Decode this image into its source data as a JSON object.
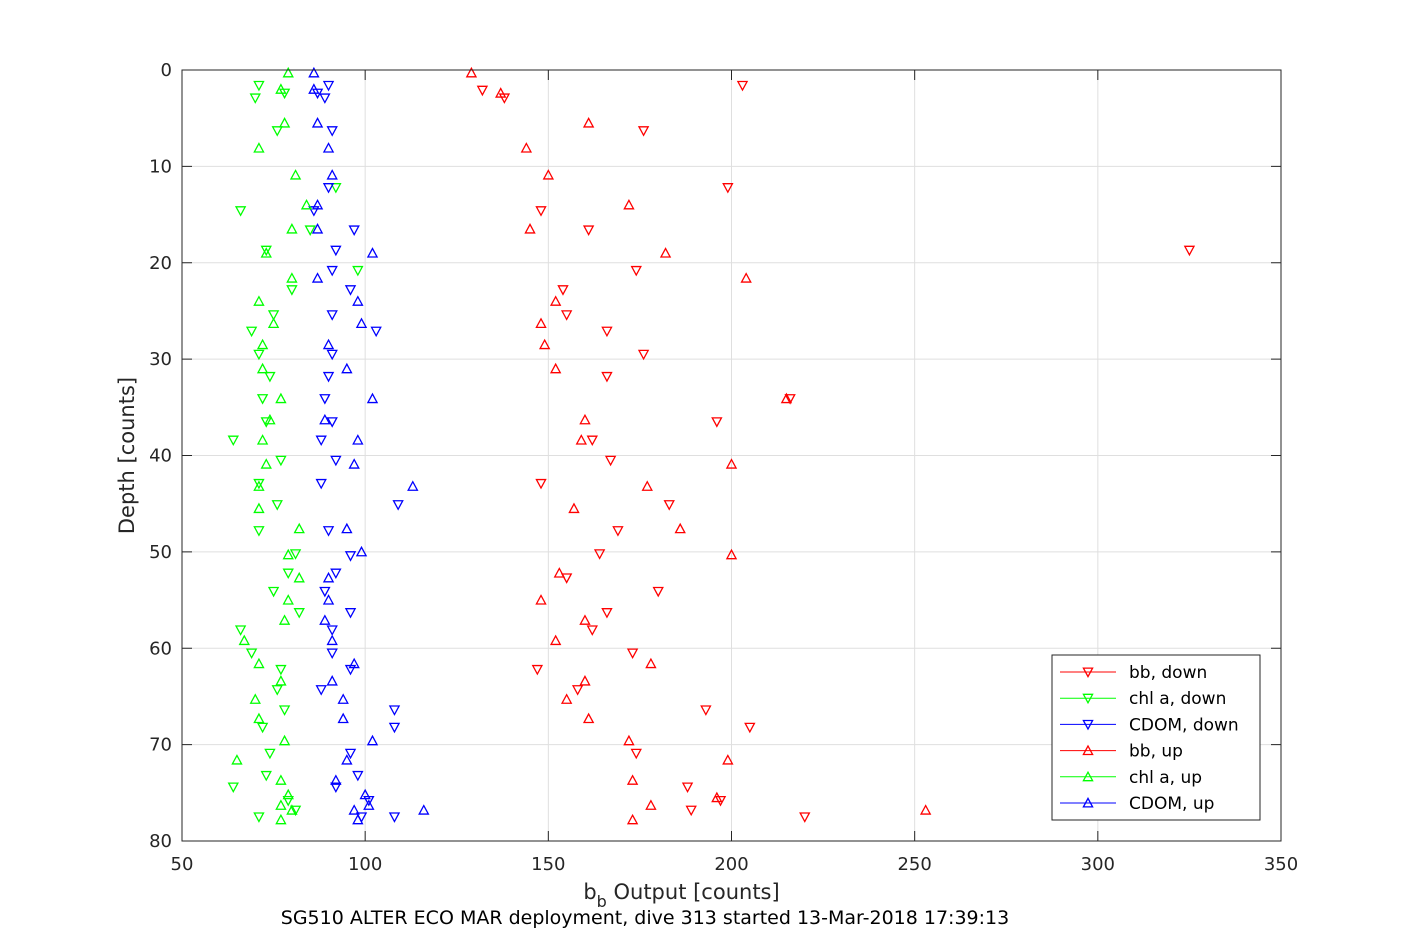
{
  "caption": "SG510 ALTER ECO MAR deployment, dive 313 started 13-Mar-2018 17:39:13",
  "chart_data": {
    "type": "scatter",
    "xlabel_main": "b",
    "xlabel_sub": "b",
    "xlabel_rest": " Output [counts]",
    "ylabel": "Depth [counts]",
    "xlim": [
      50,
      350
    ],
    "ylim": [
      0,
      80
    ],
    "y_reversed": true,
    "grid": true,
    "legend_position": "bottom-right",
    "xticks": [
      50,
      100,
      150,
      200,
      250,
      300,
      350
    ],
    "yticks": [
      0,
      10,
      20,
      30,
      40,
      50,
      60,
      70,
      80
    ],
    "series": [
      {
        "name": "bb, down",
        "color": "#ff0000",
        "marker": "triangle-down",
        "points": [
          [
            203,
            1.6
          ],
          [
            132,
            2.1
          ],
          [
            138,
            2.9
          ],
          [
            176,
            6.3
          ],
          [
            199,
            12.2
          ],
          [
            148,
            14.6
          ],
          [
            161,
            16.6
          ],
          [
            325,
            18.7
          ],
          [
            174,
            20.8
          ],
          [
            154,
            22.8
          ],
          [
            155,
            25.4
          ],
          [
            166,
            27.1
          ],
          [
            176,
            29.5
          ],
          [
            166,
            31.8
          ],
          [
            216,
            34.1
          ],
          [
            196,
            36.5
          ],
          [
            162,
            38.4
          ],
          [
            167,
            40.5
          ],
          [
            148,
            42.9
          ],
          [
            183,
            45.1
          ],
          [
            169,
            47.8
          ],
          [
            164,
            50.2
          ],
          [
            155,
            52.7
          ],
          [
            180,
            54.1
          ],
          [
            166,
            56.3
          ],
          [
            162,
            58.1
          ],
          [
            173,
            60.5
          ],
          [
            147,
            62.2
          ],
          [
            158,
            64.3
          ],
          [
            193,
            66.4
          ],
          [
            205,
            68.2
          ],
          [
            174,
            70.9
          ],
          [
            188,
            74.4
          ],
          [
            197,
            75.8
          ],
          [
            189,
            76.8
          ],
          [
            220,
            77.5
          ]
        ]
      },
      {
        "name": "chl a, down",
        "color": "#00ff00",
        "marker": "triangle-down",
        "points": [
          [
            71,
            1.6
          ],
          [
            78,
            2.4
          ],
          [
            70,
            2.9
          ],
          [
            76,
            6.3
          ],
          [
            92,
            12.2
          ],
          [
            66,
            14.6
          ],
          [
            85,
            16.6
          ],
          [
            73,
            18.7
          ],
          [
            98,
            20.8
          ],
          [
            80,
            22.8
          ],
          [
            75,
            25.4
          ],
          [
            69,
            27.1
          ],
          [
            71,
            29.5
          ],
          [
            74,
            31.8
          ],
          [
            72,
            34.1
          ],
          [
            73,
            36.5
          ],
          [
            64,
            38.4
          ],
          [
            77,
            40.5
          ],
          [
            71,
            42.9
          ],
          [
            76,
            45.1
          ],
          [
            71,
            47.8
          ],
          [
            81,
            50.2
          ],
          [
            79,
            52.2
          ],
          [
            75,
            54.1
          ],
          [
            82,
            56.3
          ],
          [
            66,
            58.1
          ],
          [
            69,
            60.5
          ],
          [
            77,
            62.2
          ],
          [
            76,
            64.3
          ],
          [
            78,
            66.4
          ],
          [
            72,
            68.2
          ],
          [
            74,
            70.9
          ],
          [
            73,
            73.2
          ],
          [
            64,
            74.4
          ],
          [
            79,
            75.8
          ],
          [
            81,
            76.8
          ],
          [
            71,
            77.5
          ]
        ]
      },
      {
        "name": "CDOM, down",
        "color": "#0000ff",
        "marker": "triangle-down",
        "points": [
          [
            90,
            1.6
          ],
          [
            87,
            2.4
          ],
          [
            89,
            2.9
          ],
          [
            91,
            6.3
          ],
          [
            90,
            12.2
          ],
          [
            86,
            14.6
          ],
          [
            97,
            16.6
          ],
          [
            92,
            18.7
          ],
          [
            91,
            20.8
          ],
          [
            96,
            22.8
          ],
          [
            91,
            25.4
          ],
          [
            103,
            27.1
          ],
          [
            91,
            29.5
          ],
          [
            90,
            31.8
          ],
          [
            89,
            34.1
          ],
          [
            91,
            36.5
          ],
          [
            88,
            38.4
          ],
          [
            92,
            40.5
          ],
          [
            88,
            42.9
          ],
          [
            109,
            45.1
          ],
          [
            90,
            47.8
          ],
          [
            96,
            50.4
          ],
          [
            92,
            52.2
          ],
          [
            89,
            54.1
          ],
          [
            96,
            56.3
          ],
          [
            91,
            58.1
          ],
          [
            91,
            60.5
          ],
          [
            96,
            62.2
          ],
          [
            88,
            64.3
          ],
          [
            108,
            66.4
          ],
          [
            108,
            68.2
          ],
          [
            96,
            70.9
          ],
          [
            98,
            73.2
          ],
          [
            92,
            74.4
          ],
          [
            101,
            75.8
          ],
          [
            99,
            77.5
          ],
          [
            108,
            77.5
          ]
        ]
      },
      {
        "name": "bb, up",
        "color": "#ff0000",
        "marker": "triangle-up",
        "points": [
          [
            129,
            0.3
          ],
          [
            137,
            2.4
          ],
          [
            161,
            5.5
          ],
          [
            144,
            8.1
          ],
          [
            150,
            10.9
          ],
          [
            172,
            14.0
          ],
          [
            145,
            16.5
          ],
          [
            182,
            19.0
          ],
          [
            204,
            21.6
          ],
          [
            152,
            24.0
          ],
          [
            148,
            26.3
          ],
          [
            149,
            28.5
          ],
          [
            152,
            31.0
          ],
          [
            215,
            34.1
          ],
          [
            160,
            36.3
          ],
          [
            159,
            38.4
          ],
          [
            200,
            40.9
          ],
          [
            177,
            43.2
          ],
          [
            157,
            45.5
          ],
          [
            186,
            47.6
          ],
          [
            200,
            50.3
          ],
          [
            153,
            52.2
          ],
          [
            148,
            55.0
          ],
          [
            160,
            57.1
          ],
          [
            152,
            59.2
          ],
          [
            178,
            61.6
          ],
          [
            160,
            63.4
          ],
          [
            155,
            65.3
          ],
          [
            161,
            67.3
          ],
          [
            172,
            69.6
          ],
          [
            199,
            71.6
          ],
          [
            173,
            73.7
          ],
          [
            196,
            75.5
          ],
          [
            178,
            76.3
          ],
          [
            253,
            76.8
          ],
          [
            173,
            77.8
          ]
        ]
      },
      {
        "name": "chl a, up",
        "color": "#00ff00",
        "marker": "triangle-up",
        "points": [
          [
            79,
            0.3
          ],
          [
            77,
            2.0
          ],
          [
            78,
            5.5
          ],
          [
            71,
            8.1
          ],
          [
            81,
            10.9
          ],
          [
            84,
            14.0
          ],
          [
            80,
            16.5
          ],
          [
            73,
            19.0
          ],
          [
            80,
            21.6
          ],
          [
            71,
            24.0
          ],
          [
            75,
            26.3
          ],
          [
            72,
            28.5
          ],
          [
            72,
            31.0
          ],
          [
            77,
            34.1
          ],
          [
            74,
            36.3
          ],
          [
            72,
            38.4
          ],
          [
            73,
            40.9
          ],
          [
            71,
            43.2
          ],
          [
            71,
            45.5
          ],
          [
            82,
            47.6
          ],
          [
            79,
            50.3
          ],
          [
            82,
            52.7
          ],
          [
            79,
            55.0
          ],
          [
            78,
            57.1
          ],
          [
            67,
            59.2
          ],
          [
            71,
            61.6
          ],
          [
            77,
            63.4
          ],
          [
            70,
            65.3
          ],
          [
            71,
            67.3
          ],
          [
            78,
            69.6
          ],
          [
            65,
            71.6
          ],
          [
            77,
            73.7
          ],
          [
            79,
            75.2
          ],
          [
            77,
            76.3
          ],
          [
            80,
            76.8
          ],
          [
            77,
            77.8
          ]
        ]
      },
      {
        "name": "CDOM, up",
        "color": "#0000ff",
        "marker": "triangle-up",
        "points": [
          [
            86,
            0.3
          ],
          [
            86,
            2.0
          ],
          [
            87,
            5.5
          ],
          [
            90,
            8.1
          ],
          [
            91,
            10.9
          ],
          [
            87,
            14.0
          ],
          [
            87,
            16.5
          ],
          [
            102,
            19.0
          ],
          [
            87,
            21.6
          ],
          [
            98,
            24.0
          ],
          [
            99,
            26.3
          ],
          [
            90,
            28.5
          ],
          [
            95,
            31.0
          ],
          [
            102,
            34.1
          ],
          [
            89,
            36.3
          ],
          [
            98,
            38.4
          ],
          [
            97,
            40.9
          ],
          [
            113,
            43.2
          ],
          [
            95,
            47.6
          ],
          [
            99,
            50.0
          ],
          [
            90,
            52.7
          ],
          [
            90,
            55.0
          ],
          [
            89,
            57.1
          ],
          [
            91,
            59.2
          ],
          [
            97,
            61.6
          ],
          [
            91,
            63.4
          ],
          [
            94,
            65.3
          ],
          [
            94,
            67.3
          ],
          [
            102,
            69.6
          ],
          [
            95,
            71.6
          ],
          [
            92,
            73.7
          ],
          [
            100,
            75.2
          ],
          [
            101,
            76.3
          ],
          [
            97,
            76.8
          ],
          [
            116,
            76.8
          ],
          [
            98,
            77.8
          ]
        ]
      }
    ]
  }
}
